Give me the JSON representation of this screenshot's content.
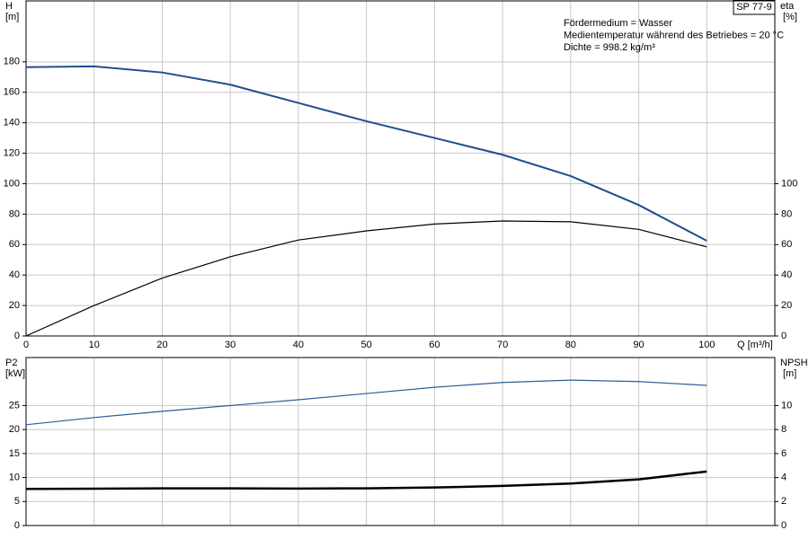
{
  "chart_data": [
    {
      "type": "line",
      "top_label": "SP 77-9",
      "ylabel": "H",
      "yunit": "[m]",
      "y2label": "eta",
      "y2unit": "[%]",
      "xlabel": "Q [m³/h]",
      "annotations": [
        "Fördermedium = Wasser",
        "Medientemperatur während des Betriebes = 20 °C",
        "Dichte = 998.2 kg/m³"
      ],
      "x": [
        0,
        10,
        20,
        30,
        40,
        50,
        60,
        70,
        80,
        90,
        100
      ],
      "xlim": [
        0,
        110
      ],
      "xticks": [
        0,
        10,
        20,
        30,
        40,
        50,
        60,
        70,
        80,
        90,
        100
      ],
      "ylim": [
        0,
        220
      ],
      "yticks": [
        0,
        20,
        40,
        60,
        80,
        100,
        120,
        140,
        160,
        180
      ],
      "y2lim": [
        0,
        220
      ],
      "y2ticks": [
        0,
        20,
        40,
        60,
        80,
        100
      ],
      "grid": true,
      "series": [
        {
          "color": "#1f4e8c",
          "width": 2,
          "values": [
            176.5,
            177,
            173,
            165,
            153,
            141,
            130,
            119,
            105,
            86,
            62.5
          ]
        },
        {
          "color": "#000000",
          "width": 1.2,
          "axis": "y2",
          "values": [
            0,
            20,
            38,
            52,
            63,
            69,
            73.5,
            75.5,
            75,
            70,
            58.5
          ]
        }
      ]
    },
    {
      "type": "line",
      "ylabel": "P2",
      "yunit": "[kW]",
      "y2label": "NPSH",
      "y2unit": "[m]",
      "x": [
        0,
        10,
        20,
        30,
        40,
        50,
        60,
        70,
        80,
        90,
        100
      ],
      "xlim": [
        0,
        110
      ],
      "ylim": [
        0,
        35
      ],
      "yticks": [
        0,
        5,
        10,
        15,
        20,
        25
      ],
      "y2lim": [
        0,
        14
      ],
      "y2ticks": [
        0,
        2,
        4,
        6,
        8,
        10
      ],
      "grid": true,
      "series": [
        {
          "color": "#2a5f98",
          "width": 1.2,
          "values": [
            21,
            22.5,
            23.8,
            25,
            26.2,
            27.5,
            28.8,
            29.8,
            30.3,
            30.0,
            29.2
          ]
        },
        {
          "color": "#000000",
          "width": 2.5,
          "axis": "y2",
          "values": [
            3.05,
            3.07,
            3.1,
            3.1,
            3.08,
            3.1,
            3.17,
            3.3,
            3.5,
            3.85,
            4.5
          ]
        }
      ]
    }
  ]
}
